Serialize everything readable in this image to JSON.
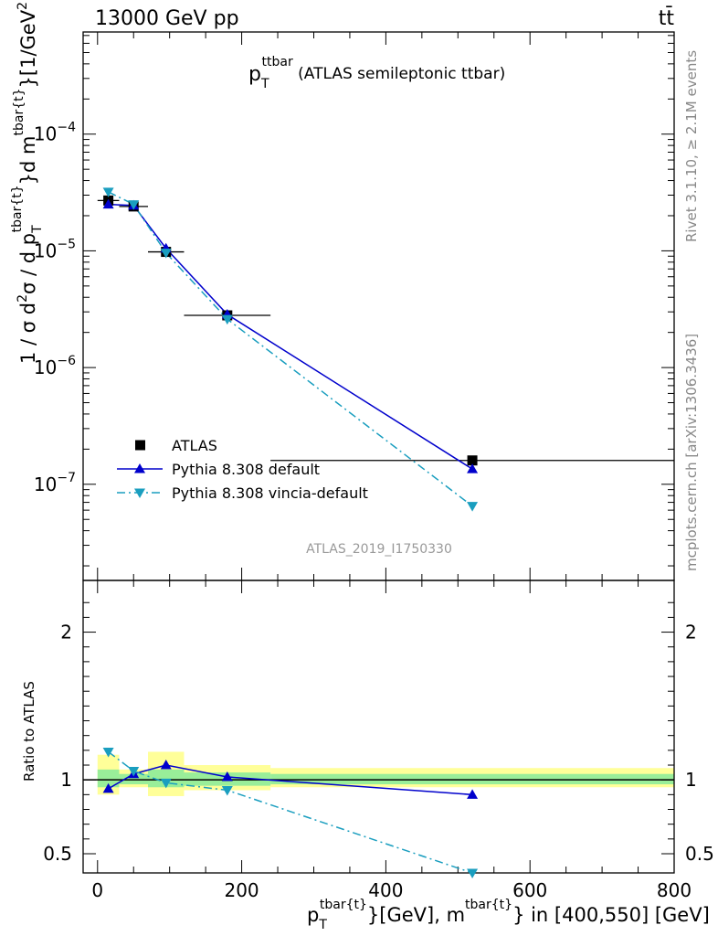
{
  "header": {
    "energy_label": "13000 GeV pp",
    "process_label": "tt̄"
  },
  "side_labels": {
    "rivet": "Rivet 3.1.10, ≥ 2.1M events",
    "source": "mcplots.cern.ch [arXiv:1306.3436]"
  },
  "chart_data": [
    {
      "type": "line",
      "panel": "main",
      "title": "p_T^ttbar (ATLAS semileptonic ttbar)",
      "title_parts": {
        "p": "p",
        "sub": "T",
        "sup": "ttbar",
        "rest": "(ATLAS semileptonic ttbar)"
      },
      "analysis_id": "ATLAS_2019_I1750330",
      "ylabel": "1 / σ d²σ / d p_T^{tbar{t}}d m^{tbar{t}} [1/GeV²]",
      "ylabel_parts": {
        "a": "1 / σ d",
        "a_sup": "2",
        "b": "σ /  d p",
        "b_sub": "T",
        "b_sup": "tbar{t}",
        "c": "}d m",
        "c_sup": "tbar{t}",
        "d": "}[1/GeV",
        "d_sup": "2",
        "e": "]"
      },
      "yscale": "log",
      "ylim": [
        1.5e-08,
        0.00075
      ],
      "xlim": [
        -20,
        800
      ],
      "yticks": [
        {
          "value": 1e-07,
          "base": "10",
          "exp": "−7"
        },
        {
          "value": 1e-06,
          "base": "10",
          "exp": "−6"
        },
        {
          "value": 1e-05,
          "base": "10",
          "exp": "−5"
        },
        {
          "value": 0.0001,
          "base": "10",
          "exp": "−4"
        }
      ],
      "legend_position": "lower-left",
      "series": [
        {
          "name": "ATLAS",
          "marker": "square",
          "color": "#000000",
          "x": [
            15,
            50,
            95,
            180,
            520
          ],
          "y": [
            2.7e-05,
            2.4e-05,
            9.8e-06,
            2.8e-06,
            1.6e-07
          ],
          "xerr": [
            15,
            20,
            25,
            60,
            280
          ]
        },
        {
          "name": "Pythia 8.308 default",
          "marker": "triangle-up",
          "line": "solid",
          "color": "#0000cc",
          "x": [
            15,
            50,
            95,
            180,
            520
          ],
          "y": [
            2.5e-05,
            2.45e-05,
            1.05e-05,
            2.85e-06,
            1.35e-07
          ]
        },
        {
          "name": "Pythia 8.308 vincia-default",
          "marker": "triangle-down",
          "line": "dashdot",
          "color": "#1a9ebf",
          "x": [
            15,
            50,
            95,
            180,
            520
          ],
          "y": [
            3.2e-05,
            2.5e-05,
            9.6e-06,
            2.6e-06,
            6.5e-08
          ]
        }
      ]
    },
    {
      "type": "line",
      "panel": "ratio",
      "ylabel": "Ratio to ATLAS",
      "ylim": [
        0.37,
        2.35
      ],
      "yticks": [
        0.5,
        1,
        2
      ],
      "ytick_labels": [
        "0.5",
        "1",
        "2"
      ],
      "xlim": [
        -20,
        800
      ],
      "xticks": [
        0,
        200,
        400,
        600,
        800
      ],
      "xtick_labels": [
        "0",
        "200",
        "400",
        "600",
        "800"
      ],
      "xlabel": "p_T^{tbar{t}}[GeV], m^{tbar{t}} in [400,550] [GeV]",
      "xlabel_parts": {
        "p": "p",
        "sub": "T",
        "sup1": "tbar{t}",
        "mid": "}[GeV], m",
        "sup2": "tbar{t}",
        "end": "} in [400,550] [GeV]"
      },
      "bins": [
        {
          "x0": 0,
          "x1": 30,
          "green": [
            0.95,
            1.07
          ],
          "yellow": [
            0.9,
            1.17
          ]
        },
        {
          "x0": 30,
          "x1": 70,
          "green": [
            0.97,
            1.04
          ],
          "yellow": [
            0.95,
            1.07
          ]
        },
        {
          "x0": 70,
          "x1": 120,
          "green": [
            0.95,
            1.07
          ],
          "yellow": [
            0.89,
            1.19
          ]
        },
        {
          "x0": 120,
          "x1": 240,
          "green": [
            0.96,
            1.05
          ],
          "yellow": [
            0.93,
            1.1
          ]
        },
        {
          "x0": 240,
          "x1": 800,
          "green": [
            0.97,
            1.04
          ],
          "yellow": [
            0.95,
            1.08
          ]
        }
      ],
      "series": [
        {
          "name": "Pythia 8.308 default",
          "x": [
            15,
            50,
            95,
            180,
            520
          ],
          "y": [
            0.94,
            1.04,
            1.1,
            1.02,
            0.9
          ]
        },
        {
          "name": "Pythia 8.308 vincia-default",
          "x": [
            15,
            50,
            95,
            180,
            520
          ],
          "y": [
            1.19,
            1.06,
            0.98,
            0.93,
            0.37
          ]
        }
      ]
    }
  ]
}
